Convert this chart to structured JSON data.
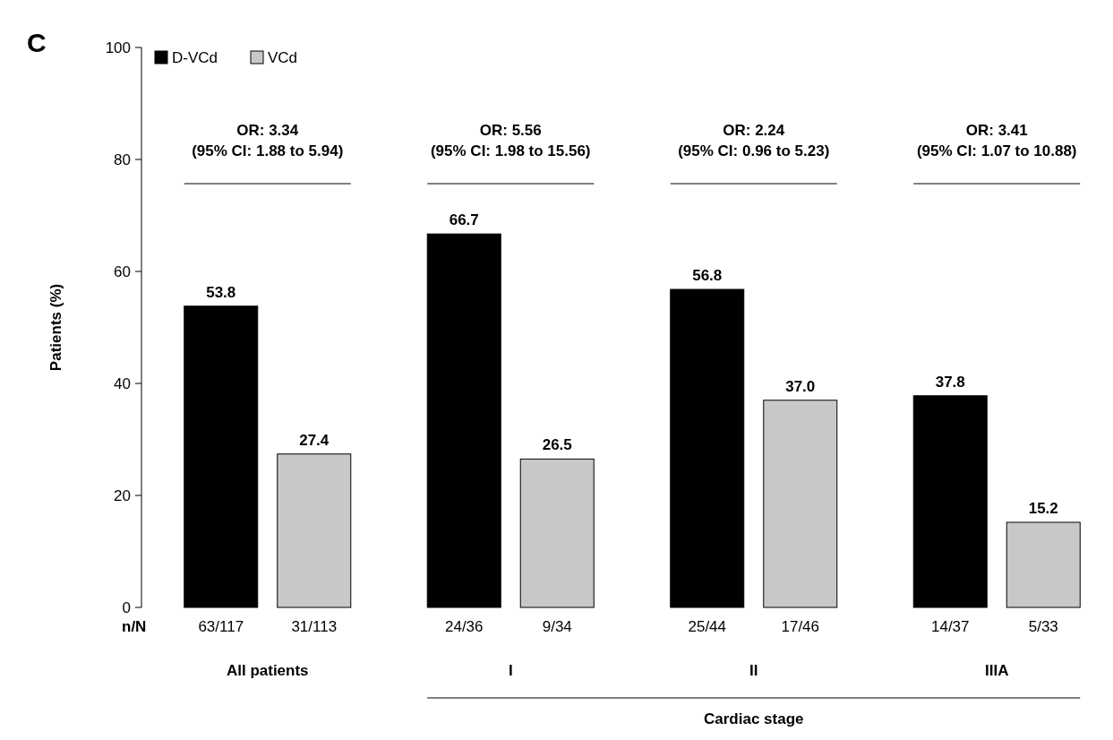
{
  "chart_data": {
    "type": "bar",
    "title": "C",
    "ylabel": "Patients (%)",
    "categories": [
      "63/117",
      "31/113",
      "24/36",
      "9/34",
      "25/44",
      "17/46",
      "14/37",
      "5/33"
    ],
    "series": [
      {
        "name": "D-VCd",
        "color": "#000000",
        "values": [
          53.8,
          null,
          66.7,
          null,
          56.8,
          null,
          37.8,
          null
        ],
        "value_labels": [
          "53.8",
          null,
          "66.7",
          null,
          "56.8",
          null,
          "37.8",
          null
        ]
      },
      {
        "name": "VCd",
        "color": "#c8c8c8",
        "values": [
          null,
          27.4,
          null,
          26.5,
          null,
          37.0,
          null,
          15.2
        ],
        "value_labels": [
          null,
          "27.4",
          null,
          "26.5",
          null,
          "37.0",
          null,
          "15.2"
        ]
      }
    ],
    "ylim": [
      0,
      100
    ],
    "yticks": [
      0,
      20,
      40,
      60,
      80,
      100
    ],
    "grid": false,
    "legend": "top left",
    "annotations": [
      "n/N",
      "OR: 3.34\n(95% CI: 1.88 to 5.94)",
      "OR: 5.56\n(95% CI: 1.98 to 15.56)",
      "OR: 2.24\n(95% CI: 0.96 to 5.23)",
      "OR: 3.41\n(95% CI: 1.07 to 10.88)",
      "All patients",
      "I",
      "II",
      "IIIA",
      "Cardiac stage"
    ]
  }
}
